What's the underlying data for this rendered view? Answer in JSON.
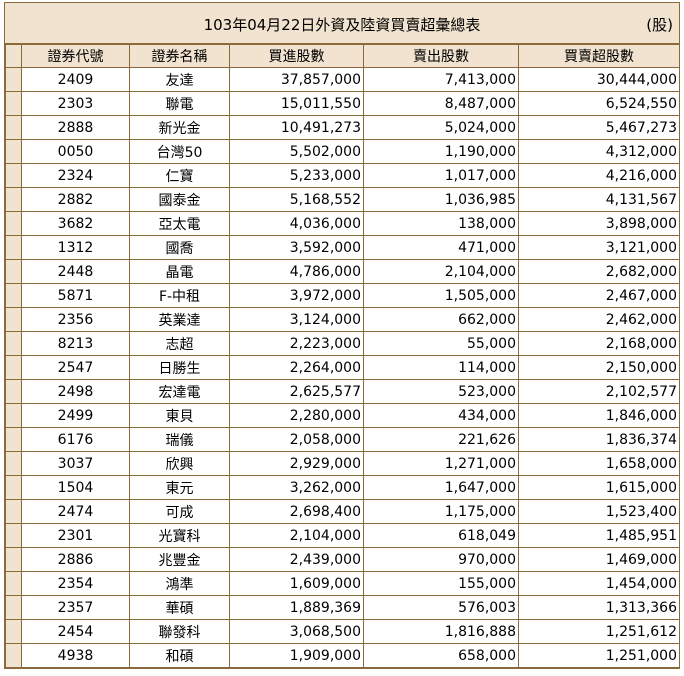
{
  "report": {
    "title": "103年04月22日外資及陸資買賣超彙總表",
    "unit": "(股)"
  },
  "table": {
    "headers": [
      "證券代號",
      "證券名稱",
      "買進股數",
      "賣出股數",
      "買賣超股數"
    ],
    "rows": [
      [
        "2409",
        "友達",
        "37,857,000",
        "7,413,000",
        "30,444,000"
      ],
      [
        "2303",
        "聯電",
        "15,011,550",
        "8,487,000",
        "6,524,550"
      ],
      [
        "2888",
        "新光金",
        "10,491,273",
        "5,024,000",
        "5,467,273"
      ],
      [
        "0050",
        "台灣50",
        "5,502,000",
        "1,190,000",
        "4,312,000"
      ],
      [
        "2324",
        "仁寶",
        "5,233,000",
        "1,017,000",
        "4,216,000"
      ],
      [
        "2882",
        "國泰金",
        "5,168,552",
        "1,036,985",
        "4,131,567"
      ],
      [
        "3682",
        "亞太電",
        "4,036,000",
        "138,000",
        "3,898,000"
      ],
      [
        "1312",
        "國喬",
        "3,592,000",
        "471,000",
        "3,121,000"
      ],
      [
        "2448",
        "晶電",
        "4,786,000",
        "2,104,000",
        "2,682,000"
      ],
      [
        "5871",
        "F-中租",
        "3,972,000",
        "1,505,000",
        "2,467,000"
      ],
      [
        "2356",
        "英業達",
        "3,124,000",
        "662,000",
        "2,462,000"
      ],
      [
        "8213",
        "志超",
        "2,223,000",
        "55,000",
        "2,168,000"
      ],
      [
        "2547",
        "日勝生",
        "2,264,000",
        "114,000",
        "2,150,000"
      ],
      [
        "2498",
        "宏達電",
        "2,625,577",
        "523,000",
        "2,102,577"
      ],
      [
        "2499",
        "東貝",
        "2,280,000",
        "434,000",
        "1,846,000"
      ],
      [
        "6176",
        "瑞儀",
        "2,058,000",
        "221,626",
        "1,836,374"
      ],
      [
        "3037",
        "欣興",
        "2,929,000",
        "1,271,000",
        "1,658,000"
      ],
      [
        "1504",
        "東元",
        "3,262,000",
        "1,647,000",
        "1,615,000"
      ],
      [
        "2474",
        "可成",
        "2,698,400",
        "1,175,000",
        "1,523,400"
      ],
      [
        "2301",
        "光寶科",
        "2,104,000",
        "618,049",
        "1,485,951"
      ],
      [
        "2886",
        "兆豐金",
        "2,439,000",
        "970,000",
        "1,469,000"
      ],
      [
        "2354",
        "鴻準",
        "1,609,000",
        "155,000",
        "1,454,000"
      ],
      [
        "2357",
        "華碩",
        "1,889,369",
        "576,003",
        "1,313,366"
      ],
      [
        "2454",
        "聯發科",
        "3,068,500",
        "1,816,888",
        "1,251,612"
      ],
      [
        "4938",
        "和碩",
        "1,909,000",
        "658,000",
        "1,251,000"
      ]
    ]
  },
  "colors": {
    "header_bg": "#f1e3cf",
    "border": "#8a6a3a",
    "cell_bg": "#ffffff"
  }
}
